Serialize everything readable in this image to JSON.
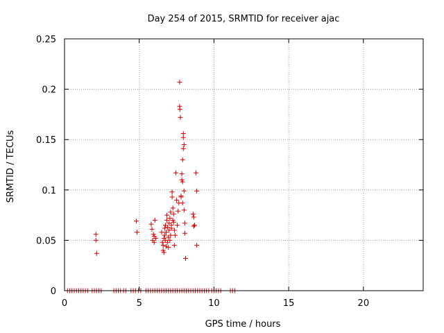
{
  "chart_data": {
    "type": "scatter",
    "title": "Day 254 of 2015, SRMTID for receiver ajac",
    "xlabel": "GPS time / hours",
    "ylabel": "SRMTID / TECUs",
    "xlim": [
      0,
      24
    ],
    "ylim": [
      0,
      0.25
    ],
    "xticks": [
      "0",
      "5",
      "10",
      "15",
      "20"
    ],
    "yticks": [
      "0",
      "0.05",
      "0.1",
      "0.15",
      "0.2",
      "0.25"
    ],
    "grid": true,
    "marker": "plus",
    "color": "#cc0000",
    "series": [
      {
        "points": [
          [
            2.1,
            0.056
          ],
          [
            2.1,
            0.05
          ],
          [
            2.15,
            0.037
          ],
          [
            4.8,
            0.069
          ],
          [
            4.85,
            0.058
          ],
          [
            5.8,
            0.066
          ],
          [
            5.85,
            0.061
          ],
          [
            5.9,
            0.05
          ],
          [
            5.95,
            0.056
          ],
          [
            6.0,
            0.054
          ],
          [
            6.0,
            0.048
          ],
          [
            6.05,
            0.07
          ],
          [
            6.1,
            0.052
          ],
          [
            6.5,
            0.058
          ],
          [
            6.55,
            0.048
          ],
          [
            6.6,
            0.045
          ],
          [
            6.6,
            0.04
          ],
          [
            6.65,
            0.038
          ],
          [
            6.65,
            0.052
          ],
          [
            6.7,
            0.055
          ],
          [
            6.7,
            0.062
          ],
          [
            6.75,
            0.065
          ],
          [
            6.75,
            0.05
          ],
          [
            6.8,
            0.044
          ],
          [
            6.8,
            0.058
          ],
          [
            6.85,
            0.07
          ],
          [
            6.85,
            0.075
          ],
          [
            6.9,
            0.063
          ],
          [
            6.9,
            0.048
          ],
          [
            6.95,
            0.053
          ],
          [
            6.95,
            0.043
          ],
          [
            7.0,
            0.06
          ],
          [
            7.0,
            0.067
          ],
          [
            7.05,
            0.072
          ],
          [
            7.05,
            0.05
          ],
          [
            7.1,
            0.078
          ],
          [
            7.1,
            0.055
          ],
          [
            7.15,
            0.065
          ],
          [
            7.15,
            0.062
          ],
          [
            7.2,
            0.093
          ],
          [
            7.2,
            0.098
          ],
          [
            7.25,
            0.082
          ],
          [
            7.25,
            0.07
          ],
          [
            7.3,
            0.068
          ],
          [
            7.3,
            0.076
          ],
          [
            7.35,
            0.06
          ],
          [
            7.35,
            0.045
          ],
          [
            7.4,
            0.055
          ],
          [
            7.45,
            0.117
          ],
          [
            7.5,
            0.09
          ],
          [
            7.55,
            0.065
          ],
          [
            7.6,
            0.079
          ],
          [
            7.65,
            0.087
          ],
          [
            7.7,
            0.207
          ],
          [
            7.7,
            0.183
          ],
          [
            7.72,
            0.18
          ],
          [
            7.75,
            0.172
          ],
          [
            7.8,
            0.094
          ],
          [
            7.8,
            0.093
          ],
          [
            7.85,
            0.116
          ],
          [
            7.85,
            0.11
          ],
          [
            7.9,
            0.108
          ],
          [
            7.9,
            0.087
          ],
          [
            7.95,
            0.156
          ],
          [
            7.95,
            0.152
          ],
          [
            8.0,
            0.145
          ],
          [
            7.95,
            0.141
          ],
          [
            7.9,
            0.13
          ],
          [
            8.0,
            0.099
          ],
          [
            8.0,
            0.08
          ],
          [
            8.05,
            0.067
          ],
          [
            8.05,
            0.057
          ],
          [
            8.1,
            0.032
          ],
          [
            8.6,
            0.076
          ],
          [
            8.65,
            0.073
          ],
          [
            8.65,
            0.064
          ],
          [
            8.7,
            0.065
          ],
          [
            8.8,
            0.117
          ],
          [
            8.85,
            0.099
          ],
          [
            8.85,
            0.045
          ]
        ]
      }
    ],
    "zero_values_x": [
      0.2,
      0.35,
      0.5,
      0.65,
      0.8,
      0.95,
      1.1,
      1.25,
      1.4,
      1.55,
      1.85,
      2.0,
      2.15,
      2.3,
      2.45,
      3.3,
      3.45,
      3.6,
      3.75,
      3.95,
      4.1,
      4.45,
      4.6,
      4.75,
      4.95,
      5.1,
      5.45,
      5.6,
      5.75,
      5.9,
      6.05,
      6.2,
      6.35,
      6.5,
      6.65,
      6.8,
      6.95,
      7.1,
      7.25,
      7.4,
      7.55,
      7.7,
      7.85,
      8.0,
      8.15,
      8.3,
      8.45,
      8.6,
      8.75,
      8.9,
      9.05,
      9.2,
      9.35,
      9.5,
      9.65,
      9.85,
      10.0,
      10.15,
      10.3,
      10.45,
      11.1,
      11.25,
      11.4
    ]
  }
}
